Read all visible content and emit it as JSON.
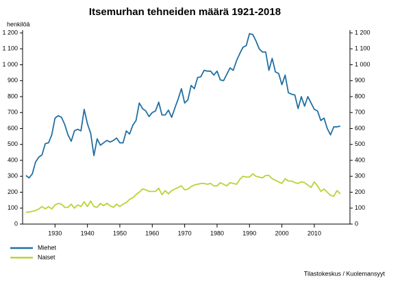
{
  "chart_data": {
    "type": "line",
    "title": "Itsemurhan tehneiden määrä 1921-2018",
    "y_label": "henkilöä",
    "source": "Tilastokeskus / Kuolemansyyt",
    "x": [
      1921,
      1922,
      1923,
      1924,
      1925,
      1926,
      1927,
      1928,
      1929,
      1930,
      1931,
      1932,
      1933,
      1934,
      1935,
      1936,
      1937,
      1938,
      1939,
      1940,
      1941,
      1942,
      1943,
      1944,
      1945,
      1946,
      1947,
      1948,
      1949,
      1950,
      1951,
      1952,
      1953,
      1954,
      1955,
      1956,
      1957,
      1958,
      1959,
      1960,
      1961,
      1962,
      1963,
      1964,
      1965,
      1966,
      1967,
      1968,
      1969,
      1970,
      1971,
      1972,
      1973,
      1974,
      1975,
      1976,
      1977,
      1978,
      1979,
      1980,
      1981,
      1982,
      1983,
      1984,
      1985,
      1986,
      1987,
      1988,
      1989,
      1990,
      1991,
      1992,
      1993,
      1994,
      1995,
      1996,
      1997,
      1998,
      1999,
      2000,
      2001,
      2002,
      2003,
      2004,
      2005,
      2006,
      2007,
      2008,
      2009,
      2010,
      2011,
      2012,
      2013,
      2014,
      2015,
      2016,
      2017,
      2018
    ],
    "series": [
      {
        "name": "Miehet",
        "color": "#1f6fa3",
        "values": [
          305,
          290,
          315,
          390,
          420,
          435,
          505,
          510,
          560,
          665,
          680,
          670,
          625,
          560,
          520,
          585,
          595,
          585,
          720,
          630,
          570,
          430,
          535,
          495,
          510,
          525,
          515,
          525,
          540,
          510,
          510,
          585,
          565,
          620,
          650,
          760,
          725,
          710,
          675,
          700,
          710,
          765,
          685,
          685,
          715,
          670,
          730,
          785,
          850,
          760,
          780,
          870,
          850,
          920,
          925,
          965,
          960,
          960,
          935,
          960,
          905,
          900,
          940,
          980,
          965,
          1025,
          1070,
          1110,
          1120,
          1195,
          1190,
          1150,
          1100,
          1080,
          1080,
          965,
          1040,
          955,
          945,
          875,
          935,
          825,
          815,
          810,
          725,
          800,
          740,
          800,
          760,
          720,
          710,
          650,
          665,
          600,
          560,
          610,
          610,
          615
        ]
      },
      {
        "name": "Naiset",
        "color": "#b7d334",
        "values": [
          75,
          75,
          80,
          85,
          95,
          110,
          95,
          110,
          95,
          120,
          130,
          125,
          105,
          105,
          125,
          100,
          120,
          110,
          140,
          110,
          145,
          110,
          105,
          130,
          115,
          130,
          115,
          105,
          125,
          110,
          125,
          135,
          155,
          165,
          185,
          200,
          220,
          215,
          205,
          205,
          205,
          225,
          185,
          210,
          190,
          210,
          220,
          230,
          240,
          215,
          220,
          235,
          245,
          250,
          255,
          255,
          250,
          255,
          240,
          240,
          260,
          250,
          240,
          260,
          255,
          250,
          280,
          300,
          295,
          295,
          315,
          300,
          295,
          290,
          305,
          305,
          285,
          275,
          265,
          255,
          285,
          270,
          270,
          260,
          255,
          265,
          260,
          245,
          230,
          265,
          240,
          205,
          220,
          200,
          180,
          175,
          210,
          190
        ]
      }
    ],
    "xlim": [
      1920,
      2021
    ],
    "xticks": [
      1930,
      1940,
      1950,
      1960,
      1970,
      1980,
      1990,
      2000,
      2010
    ],
    "ylim": [
      0,
      1200
    ],
    "yticks": [
      0,
      100,
      200,
      300,
      400,
      500,
      600,
      700,
      800,
      900,
      {
        "value": 1000,
        "label": "1 000"
      },
      {
        "value": 1100,
        "label": "1 100"
      },
      {
        "value": 1200,
        "label": "1 200"
      }
    ],
    "legend": "bottom-left"
  }
}
